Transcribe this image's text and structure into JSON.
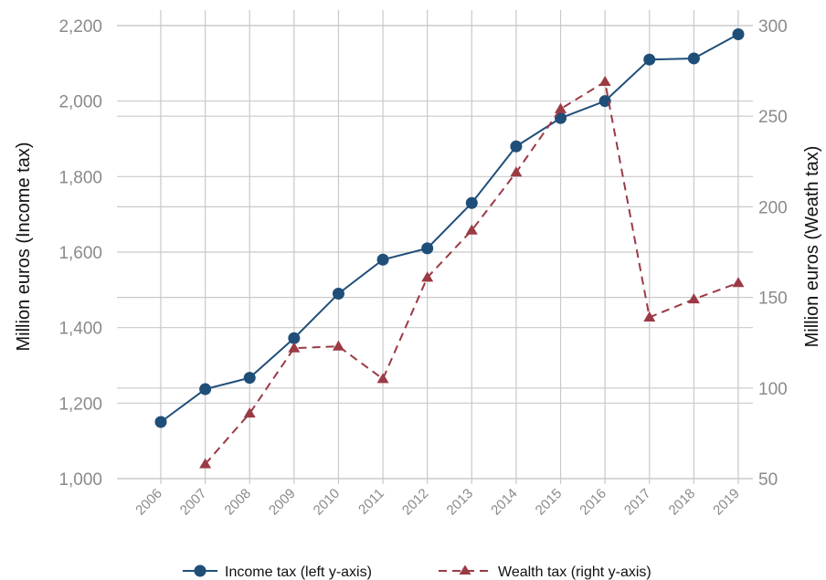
{
  "chart_data": {
    "type": "line",
    "x": [
      "2006",
      "2007",
      "2008",
      "2009",
      "2010",
      "2011",
      "2012",
      "2013",
      "2014",
      "2015",
      "2016",
      "2017",
      "2018",
      "2019"
    ],
    "ylabel_left": "Million euros (Income tax)",
    "ylabel_right": "Million euros (Weath tax)",
    "ylim_left": [
      1000,
      2200
    ],
    "yticks_left": [
      1000,
      1200,
      1400,
      1600,
      1800,
      2000,
      2200
    ],
    "yticks_left_labels": [
      "1,000",
      "1,200",
      "1,400",
      "1,600",
      "1,800",
      "2,000",
      "2,200"
    ],
    "ylim_right": [
      50,
      300
    ],
    "yticks_right": [
      50,
      100,
      150,
      200,
      250,
      300
    ],
    "yticks_right_labels": [
      "50",
      "100",
      "150",
      "200",
      "250",
      "300"
    ],
    "grid": true,
    "legend_position": "bottom",
    "series": [
      {
        "name": "Income tax (left y-axis)",
        "axis": "left",
        "color": "#1f4e79",
        "marker": "circle",
        "line_style": "solid",
        "values": [
          1150,
          1237,
          1267,
          1372,
          1490,
          1580,
          1610,
          1730,
          1880,
          1955,
          2000,
          2110,
          2113,
          2177
        ]
      },
      {
        "name": "Wealth tax (right y-axis)",
        "axis": "right",
        "color": "#9b3a45",
        "marker": "triangle",
        "line_style": "dashed",
        "values": [
          null,
          58,
          86,
          122,
          123,
          105,
          161,
          187,
          219,
          254,
          269,
          139,
          149,
          158
        ]
      }
    ]
  }
}
